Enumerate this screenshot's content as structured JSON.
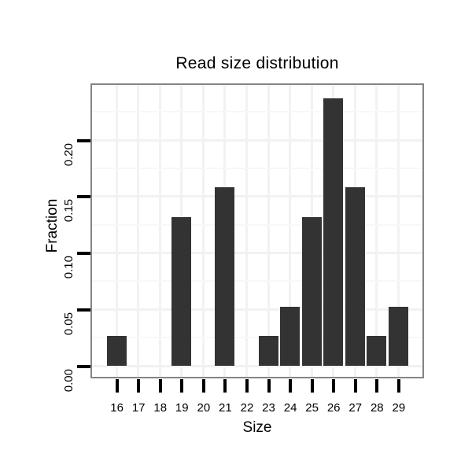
{
  "chart_data": {
    "type": "bar",
    "title": "Read size distribution",
    "xlabel": "Size",
    "ylabel": "Fraction",
    "categories": [
      "16",
      "17",
      "18",
      "19",
      "20",
      "21",
      "22",
      "23",
      "24",
      "25",
      "26",
      "27",
      "28",
      "29"
    ],
    "values": [
      0.0263,
      0,
      0,
      0.1316,
      0,
      0.1579,
      0,
      0.0263,
      0.0526,
      0.1316,
      0.2368,
      0.1579,
      0.0263,
      0.0526
    ],
    "y_tick_values": [
      0,
      0.05,
      0.1,
      0.15,
      0.2
    ],
    "y_tick_labels": [
      "0.00",
      "0.05",
      "0.10",
      "0.15",
      "0.20"
    ],
    "y_major_gridlines": [
      0,
      0.05,
      0.1,
      0.15,
      0.2,
      0.25
    ],
    "y_minor_gridlines": [
      0.025,
      0.075,
      0.125,
      0.175,
      0.225
    ],
    "ylim": [
      -0.012,
      0.2505
    ],
    "grid": true,
    "legend": "none",
    "colors": {
      "bar": "#333333",
      "panel_border": "#848484",
      "grid_major": "#f2f2f2",
      "grid_minor": "#f8f8f8",
      "tick": "#000000",
      "background": "#ffffff"
    }
  }
}
